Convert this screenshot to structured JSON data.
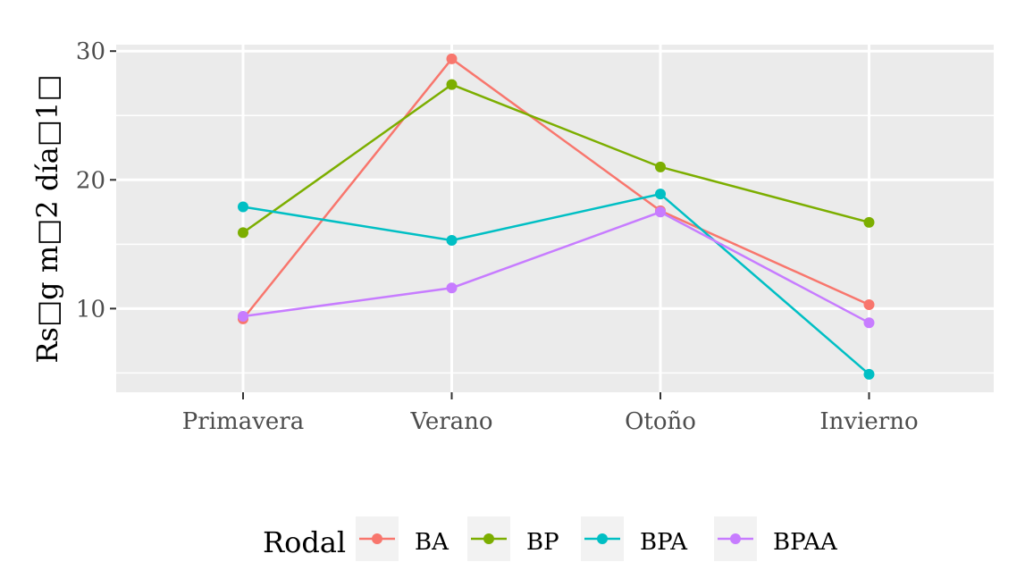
{
  "chart_data": {
    "type": "line",
    "categories": [
      "Primavera",
      "Verano",
      "Otoño",
      "Invierno"
    ],
    "ylabel": "Rs□g m□2 día□1□",
    "xlabel": "",
    "ylim": [
      3.5,
      30.5
    ],
    "yticks": [
      10,
      20,
      30
    ],
    "grid": true,
    "legend_position": "bottom",
    "legend_title": "Rodal",
    "series": [
      {
        "name": "BA",
        "color": "#F8766D",
        "values": [
          9.2,
          29.4,
          17.6,
          10.3
        ]
      },
      {
        "name": "BP",
        "color": "#7CAE00",
        "values": [
          15.9,
          27.4,
          21.0,
          16.7
        ]
      },
      {
        "name": "BPA",
        "color": "#00BFC4",
        "values": [
          17.9,
          15.3,
          18.9,
          4.9
        ]
      },
      {
        "name": "BPAA",
        "color": "#C77CFF",
        "values": [
          9.4,
          11.6,
          17.5,
          8.9
        ]
      }
    ]
  }
}
